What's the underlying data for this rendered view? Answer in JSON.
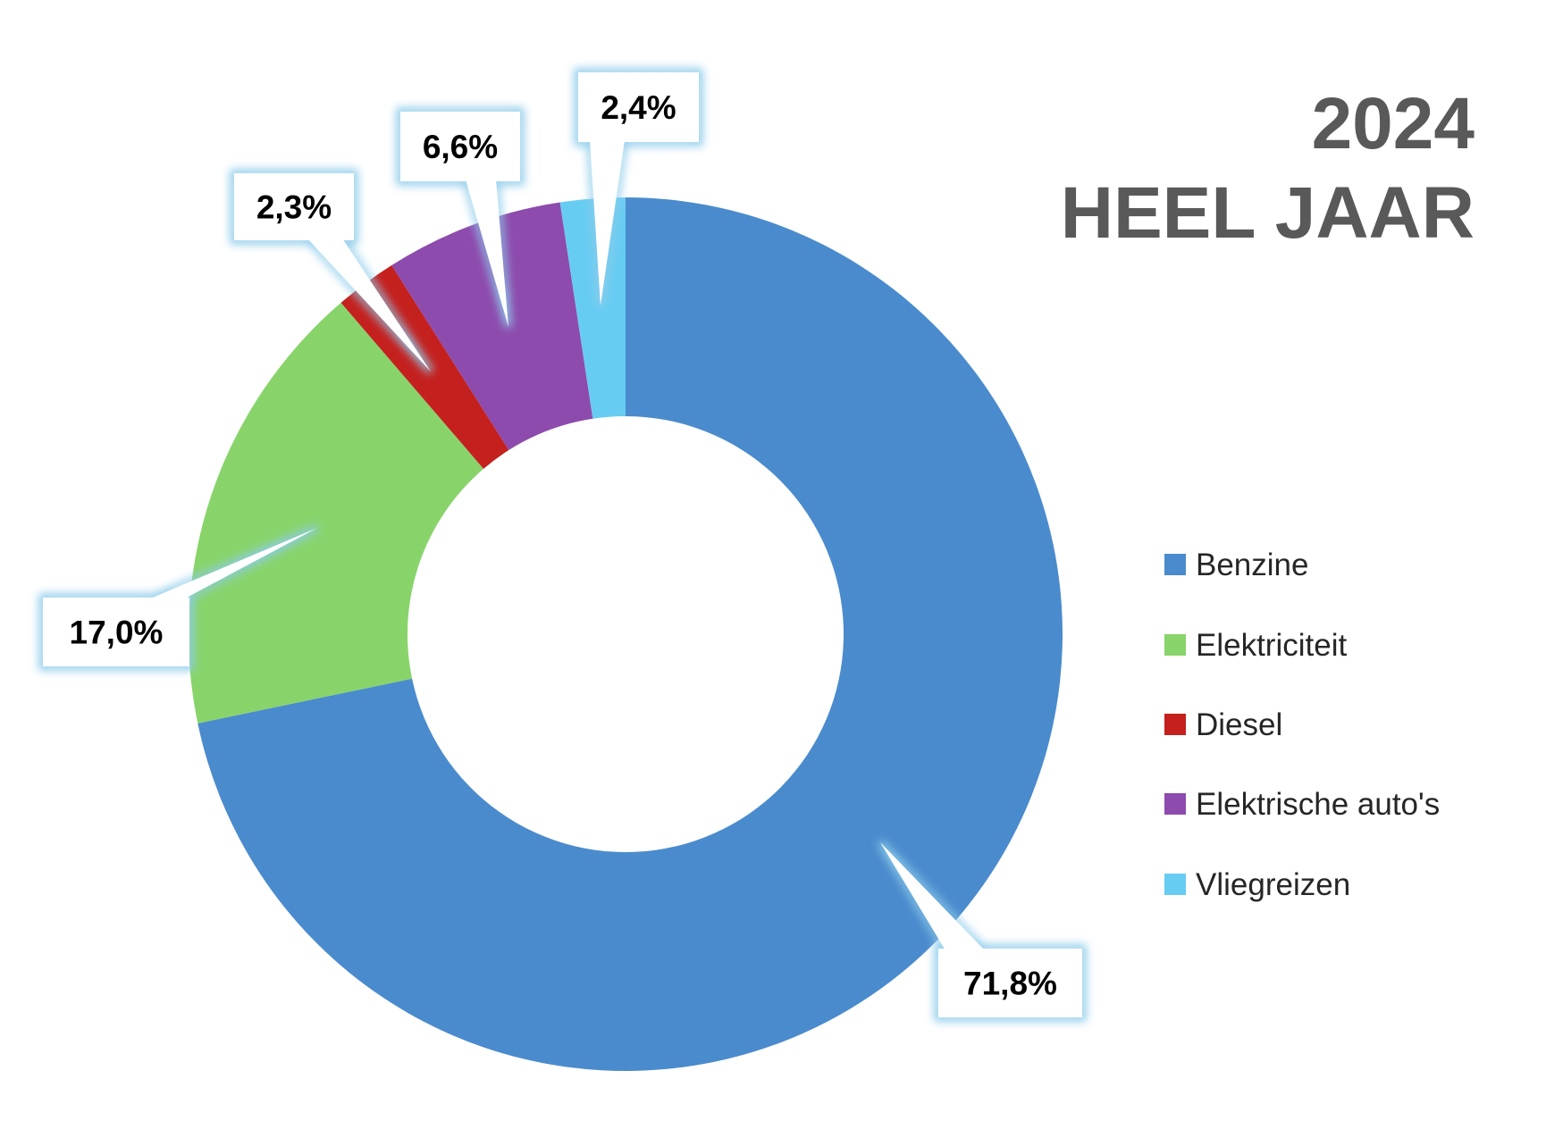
{
  "title": {
    "line1": "2024",
    "line2": "HEEL JAAR"
  },
  "chart_data": {
    "type": "pie",
    "donut": true,
    "categories": [
      "Benzine",
      "Elektriciteit",
      "Diesel",
      "Elektrische auto's",
      "Vliegreizen"
    ],
    "values": [
      71.8,
      17.0,
      2.3,
      6.6,
      2.4
    ],
    "labels": [
      "71,8%",
      "17,0%",
      "2,3%",
      "6,6%",
      "2,4%"
    ],
    "colors": [
      "#4A8BCD",
      "#88D46B",
      "#C4201E",
      "#8D4BAD",
      "#67CCF2"
    ],
    "legend_position": "right",
    "title_color": "#595959",
    "label_glow_color": "#8CCBEA"
  }
}
